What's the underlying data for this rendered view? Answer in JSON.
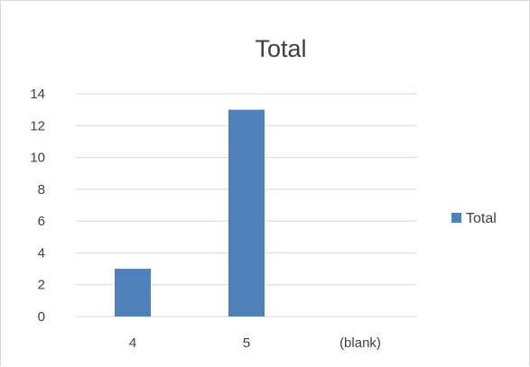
{
  "chart_data": {
    "type": "bar",
    "title": "Total",
    "categories": [
      "4",
      "5",
      "(blank)"
    ],
    "series": [
      {
        "name": "Total",
        "values": [
          3,
          13,
          null
        ],
        "color": "#4f81bd"
      }
    ],
    "ylim": [
      0,
      14
    ],
    "yticks": [
      0,
      2,
      4,
      6,
      8,
      10,
      12,
      14
    ],
    "grid": true,
    "legend": "right",
    "xlabel": "",
    "ylabel": ""
  }
}
